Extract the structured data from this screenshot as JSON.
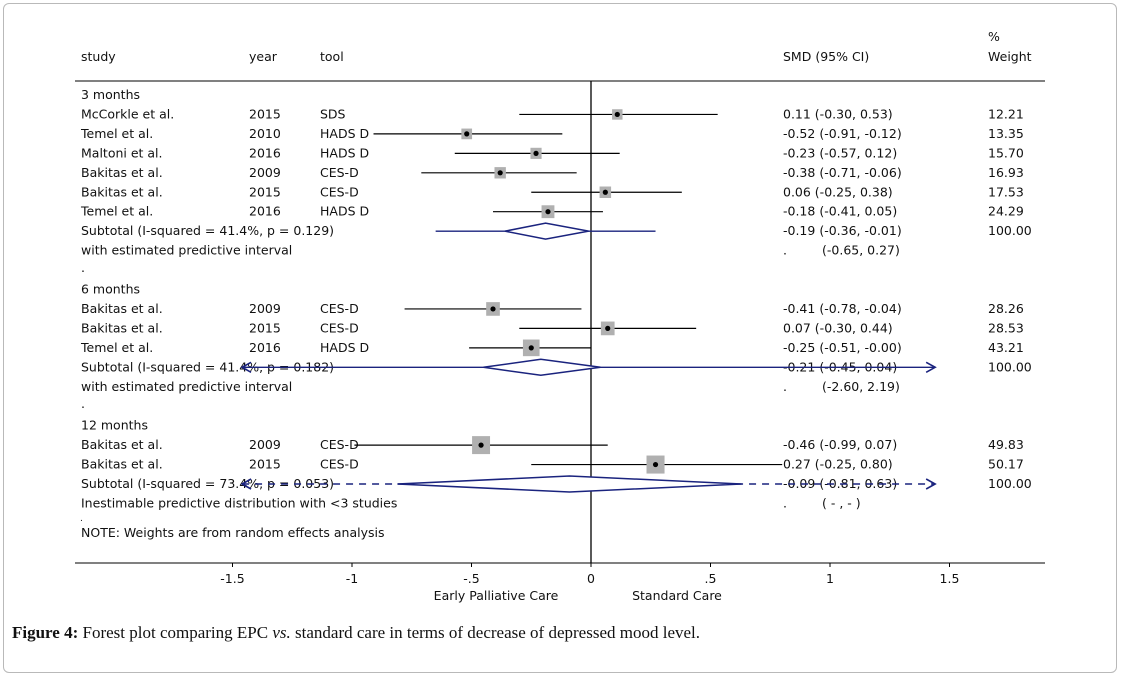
{
  "chart_data": {
    "type": "forest",
    "columns": [
      "study",
      "year",
      "tool",
      "SMD (95% CI)",
      "Weight"
    ],
    "weight_header_symbol": "%",
    "groups": [
      {
        "label": "3 months",
        "studies": [
          {
            "study": "McCorkle et al.",
            "year": "2015",
            "tool": "SDS",
            "est": 0.11,
            "lo": -0.3,
            "hi": 0.53,
            "ci_text": "0.11 (-0.30, 0.53)",
            "weight": "12.21"
          },
          {
            "study": "Temel et al.",
            "year": "2010",
            "tool": "HADS D",
            "est": -0.52,
            "lo": -0.91,
            "hi": -0.12,
            "ci_text": "-0.52 (-0.91, -0.12)",
            "weight": "13.35"
          },
          {
            "study": "Maltoni et al.",
            "year": "2016",
            "tool": "HADS D",
            "est": -0.23,
            "lo": -0.57,
            "hi": 0.12,
            "ci_text": "-0.23 (-0.57, 0.12)",
            "weight": "15.70"
          },
          {
            "study": "Bakitas et al.",
            "year": "2009",
            "tool": "CES-D",
            "est": -0.38,
            "lo": -0.71,
            "hi": -0.06,
            "ci_text": "-0.38 (-0.71, -0.06)",
            "weight": "16.93"
          },
          {
            "study": "Bakitas et al.",
            "year": "2015",
            "tool": "CES-D",
            "est": 0.06,
            "lo": -0.25,
            "hi": 0.38,
            "ci_text": "0.06 (-0.25, 0.38)",
            "weight": "17.53"
          },
          {
            "study": "Temel et al.",
            "year": "2016",
            "tool": "HADS D",
            "est": -0.18,
            "lo": -0.41,
            "hi": 0.05,
            "ci_text": "-0.18 (-0.41, 0.05)",
            "weight": "24.29"
          }
        ],
        "subtotal": {
          "label": "Subtotal  (I-squared = 41.4%, p = 0.129)",
          "est": -0.19,
          "lo": -0.36,
          "hi": -0.01,
          "ci_text": "-0.19 (-0.36, -0.01)",
          "weight": "100.00"
        },
        "predictive": {
          "label": "with estimated predictive interval",
          "lo": -0.65,
          "hi": 0.27,
          "text": "(-0.65, 0.27)",
          "style": "solid"
        }
      },
      {
        "label": "6 months",
        "studies": [
          {
            "study": "Bakitas et al.",
            "year": "2009",
            "tool": "CES-D",
            "est": -0.41,
            "lo": -0.78,
            "hi": -0.04,
            "ci_text": "-0.41 (-0.78, -0.04)",
            "weight": "28.26"
          },
          {
            "study": "Bakitas et al.",
            "year": "2015",
            "tool": "CES-D",
            "est": 0.07,
            "lo": -0.3,
            "hi": 0.44,
            "ci_text": "0.07 (-0.30, 0.44)",
            "weight": "28.53"
          },
          {
            "study": "Temel et al.",
            "year": "2016",
            "tool": "HADS D",
            "est": -0.25,
            "lo": -0.51,
            "hi": -0.0,
            "ci_text": "-0.25 (-0.51, -0.00)",
            "weight": "43.21"
          }
        ],
        "subtotal": {
          "label": "Subtotal  (I-squared = 41.4%, p = 0.182)",
          "est": -0.21,
          "lo": -0.45,
          "hi": 0.04,
          "ci_text": "-0.21 (-0.45, 0.04)",
          "weight": "100.00"
        },
        "predictive": {
          "label": "with estimated predictive interval",
          "lo": -2.6,
          "hi": 2.19,
          "text": "(-2.60, 2.19)",
          "style": "solid-arrows"
        }
      },
      {
        "label": "12 months",
        "studies": [
          {
            "study": "Bakitas et al.",
            "year": "2009",
            "tool": "CES-D",
            "est": -0.46,
            "lo": -0.99,
            "hi": 0.07,
            "ci_text": "-0.46 (-0.99, 0.07)",
            "weight": "49.83"
          },
          {
            "study": "Bakitas et al.",
            "year": "2015",
            "tool": "CES-D",
            "est": 0.27,
            "lo": -0.25,
            "hi": 0.8,
            "ci_text": "0.27 (-0.25, 0.80)",
            "weight": "50.17"
          }
        ],
        "subtotal": {
          "label": "Subtotal  (I-squared = 73.4%, p = 0.053)",
          "est": -0.09,
          "lo": -0.81,
          "hi": 0.63,
          "ci_text": "-0.09 (-0.81, 0.63)",
          "weight": "100.00",
          "arrows": "dashed"
        },
        "predictive": {
          "label": "Inestimable predictive distribution with <3 studies",
          "text": "( - , - )",
          "style": "none"
        }
      }
    ],
    "separator_dot": ".",
    "note": "NOTE: Weights are from random effects analysis",
    "x_ticks": [
      -1.5,
      -1,
      -0.5,
      0,
      0.5,
      1,
      1.5
    ],
    "x_tick_labels": [
      "-1.5",
      "-1",
      "-.5",
      "0",
      ".5",
      "1",
      "1.5"
    ],
    "xlim": [
      -1.5,
      1.5
    ],
    "favours_left": "Early Palliative Care",
    "favours_right": "Standard Care",
    "colors": {
      "ci_line": "#000000",
      "box": "#b0b0b0",
      "diamond": "#1a237e",
      "zero_line": "#000000"
    }
  },
  "caption": {
    "label": "Figure 4:",
    "text_before": " Forest plot comparing EPC ",
    "italic": "vs.",
    "text_after": " standard care in terms of decrease of depressed mood level."
  }
}
